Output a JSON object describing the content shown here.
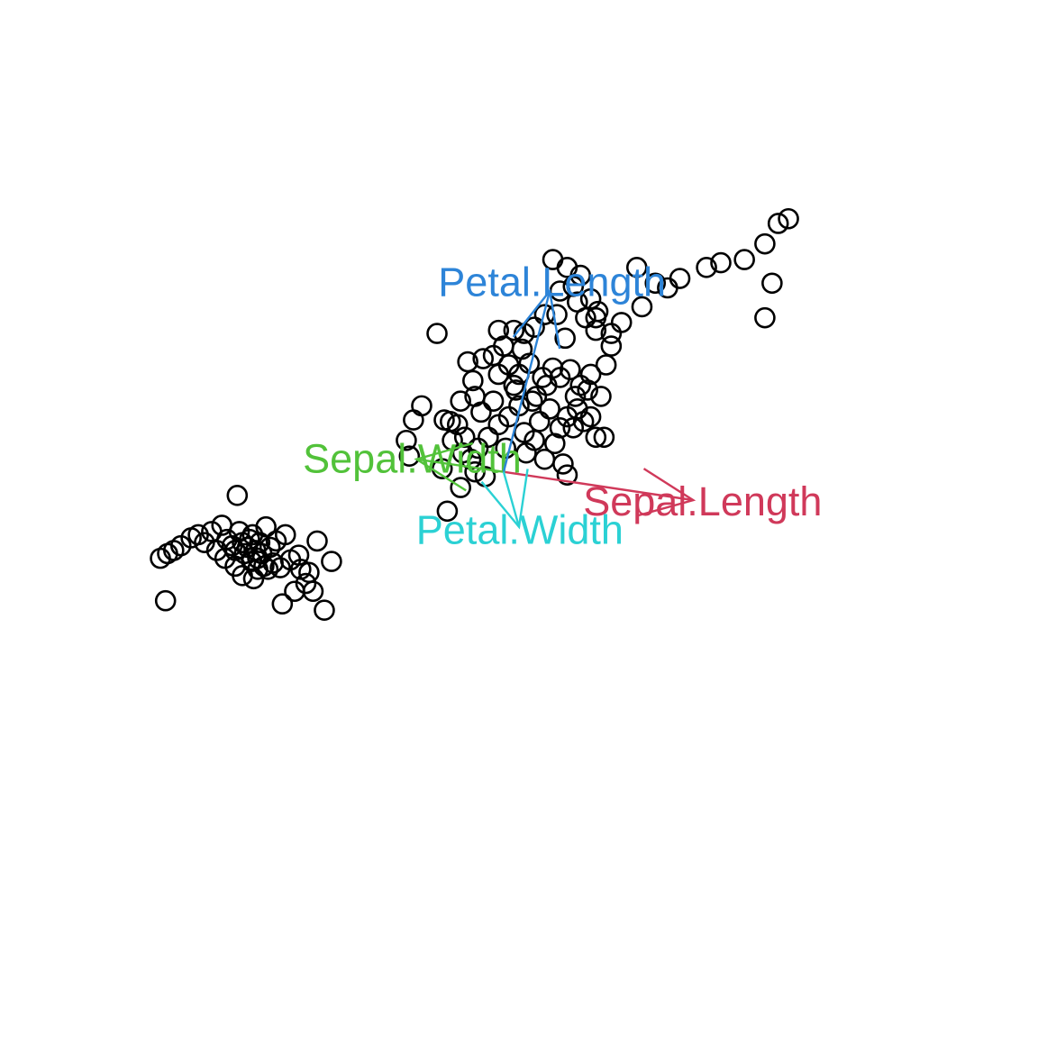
{
  "chart_data": {
    "type": "scatter",
    "title": "",
    "xlabel": "",
    "ylabel": "",
    "axes_visible": false,
    "grid": false,
    "legend": "none",
    "point_style": "open-circle",
    "point_color": "#000000",
    "xlim": [
      -4.3,
      4.6
    ],
    "ylim": [
      -3.2,
      2.6
    ],
    "points": [
      [
        -3.35,
        -0.55
      ],
      [
        -3.28,
        -0.52
      ],
      [
        -3.22,
        -0.5
      ],
      [
        -3.15,
        -0.47
      ],
      [
        -3.05,
        -0.42
      ],
      [
        -2.98,
        -0.4
      ],
      [
        -2.92,
        -0.45
      ],
      [
        -2.85,
        -0.38
      ],
      [
        -2.8,
        -0.5
      ],
      [
        -2.75,
        -0.34
      ],
      [
        -2.72,
        -0.55
      ],
      [
        -2.7,
        -0.43
      ],
      [
        -2.65,
        -0.47
      ],
      [
        -2.62,
        -0.6
      ],
      [
        -2.6,
        -0.15
      ],
      [
        -2.58,
        -0.38
      ],
      [
        -2.55,
        -0.66
      ],
      [
        -2.53,
        -0.52
      ],
      [
        -2.5,
        -0.48
      ],
      [
        -2.48,
        -0.43
      ],
      [
        -2.46,
        -0.57
      ],
      [
        -2.44,
        -0.68
      ],
      [
        -2.42,
        -0.5
      ],
      [
        -2.4,
        -0.55
      ],
      [
        -2.38,
        -0.45
      ],
      [
        -2.36,
        -0.52
      ],
      [
        -2.34,
        -0.6
      ],
      [
        -2.32,
        -0.35
      ],
      [
        -2.28,
        -0.48
      ],
      [
        -2.25,
        -0.58
      ],
      [
        -2.22,
        -0.44
      ],
      [
        -2.18,
        -0.61
      ],
      [
        -2.16,
        -0.84
      ],
      [
        -2.13,
        -0.4
      ],
      [
        -2.08,
        -0.56
      ],
      [
        -2.04,
        -0.76
      ],
      [
        -2.0,
        -0.53
      ],
      [
        -1.98,
        -0.62
      ],
      [
        -1.93,
        -0.71
      ],
      [
        -1.9,
        -0.64
      ],
      [
        -1.86,
        -0.76
      ],
      [
        -1.82,
        -0.44
      ],
      [
        -1.75,
        -0.88
      ],
      [
        -1.68,
        -0.57
      ],
      [
        -3.3,
        -0.82
      ],
      [
        -2.45,
        -0.4
      ],
      [
        -2.3,
        -0.62
      ],
      [
        -2.55,
        -0.45
      ],
      [
        -2.4,
        -0.62
      ],
      [
        -2.62,
        -0.5
      ],
      [
        -0.65,
        0.88
      ],
      [
        -0.35,
        0.7
      ],
      [
        -0.8,
        0.42
      ],
      [
        -0.88,
        0.33
      ],
      [
        -0.92,
        0.1
      ],
      [
        -0.58,
        0.33
      ],
      [
        -0.52,
        0.32
      ],
      [
        -0.6,
        0.02
      ],
      [
        -0.3,
        0.58
      ],
      [
        -0.95,
        0.2
      ],
      [
        -0.2,
        0.72
      ],
      [
        -0.1,
        0.74
      ],
      [
        -0.05,
        0.62
      ],
      [
        0.0,
        0.8
      ],
      [
        0.05,
        0.68
      ],
      [
        0.1,
        0.55
      ],
      [
        0.15,
        0.62
      ],
      [
        0.18,
        0.78
      ],
      [
        0.25,
        0.69
      ],
      [
        0.32,
        0.48
      ],
      [
        0.38,
        0.6
      ],
      [
        0.42,
        0.55
      ],
      [
        0.48,
        0.66
      ],
      [
        0.55,
        0.6
      ],
      [
        0.6,
        0.85
      ],
      [
        0.65,
        0.65
      ],
      [
        0.7,
        0.48
      ],
      [
        0.75,
        0.55
      ],
      [
        0.82,
        0.52
      ],
      [
        0.85,
        0.62
      ],
      [
        0.95,
        0.48
      ],
      [
        1.0,
        0.68
      ],
      [
        1.05,
        0.8
      ],
      [
        0.2,
        0.25
      ],
      [
        0.3,
        0.2
      ],
      [
        0.35,
        0.32
      ],
      [
        0.45,
        0.4
      ],
      [
        0.5,
        0.18
      ],
      [
        0.55,
        0.28
      ],
      [
        0.62,
        0.35
      ],
      [
        0.68,
        0.28
      ],
      [
        0.72,
        0.4
      ],
      [
        0.78,
        0.32
      ],
      [
        0.85,
        0.35
      ],
      [
        0.9,
        0.22
      ],
      [
        0.98,
        0.22
      ],
      [
        0.15,
        0.42
      ],
      [
        0.05,
        0.35
      ],
      [
        -0.05,
        0.3
      ],
      [
        -0.15,
        0.22
      ],
      [
        -0.25,
        0.15
      ],
      [
        -0.32,
        0.08
      ],
      [
        -0.4,
        0.12
      ],
      [
        -0.45,
        0.3
      ],
      [
        -0.5,
        0.2
      ],
      [
        -0.38,
        0.22
      ],
      [
        0.22,
        0.12
      ],
      [
        0.4,
        0.08
      ],
      [
        0.58,
        0.05
      ],
      [
        0.62,
        -0.02
      ],
      [
        0.28,
        0.45
      ],
      [
        0.12,
        0.52
      ],
      [
        -0.1,
        0.45
      ],
      [
        -0.22,
        0.38
      ],
      [
        -0.28,
        0.48
      ],
      [
        0.02,
        0.15
      ],
      [
        -0.42,
        0.45
      ],
      [
        -0.18,
        -0.03
      ],
      [
        -0.28,
        0.0
      ],
      [
        -0.55,
        -0.25
      ],
      [
        -0.42,
        -0.1
      ],
      [
        1.35,
        1.05
      ],
      [
        1.6,
        1.17
      ],
      [
        1.72,
        1.23
      ],
      [
        1.98,
        1.3
      ],
      [
        2.12,
        1.33
      ],
      [
        2.35,
        1.35
      ],
      [
        2.55,
        1.45
      ],
      [
        2.68,
        1.58
      ],
      [
        2.78,
        1.61
      ],
      [
        2.62,
        1.2
      ],
      [
        2.55,
        0.98
      ],
      [
        1.48,
        1.2
      ],
      [
        1.3,
        1.3
      ],
      [
        0.9,
        0.98
      ],
      [
        0.92,
        1.02
      ],
      [
        0.85,
        1.1
      ],
      [
        0.75,
        1.25
      ],
      [
        0.62,
        1.3
      ],
      [
        0.55,
        1.15
      ],
      [
        0.52,
        1.0
      ],
      [
        0.4,
        1.0
      ],
      [
        0.3,
        0.92
      ],
      [
        0.2,
        0.88
      ],
      [
        0.1,
        0.9
      ],
      [
        -0.05,
        0.9
      ],
      [
        1.15,
        0.95
      ],
      [
        1.05,
        0.88
      ],
      [
        0.9,
        0.9
      ],
      [
        0.8,
        0.98
      ],
      [
        0.72,
        1.08
      ],
      [
        0.68,
        1.18
      ],
      [
        0.48,
        1.35
      ]
    ],
    "vectors": [
      {
        "name": "Sepal.Length",
        "color": "#d0395a",
        "x": 1.85,
        "y": -0.18
      },
      {
        "name": "Sepal.Width",
        "color": "#52c23a",
        "x": -0.85,
        "y": 0.08
      },
      {
        "name": "Petal.Length",
        "color": "#2d84d8",
        "x": 0.45,
        "y": 1.15
      },
      {
        "name": "Petal.Width",
        "color": "#2bd1d4",
        "x": 0.15,
        "y": -0.35
      }
    ]
  }
}
